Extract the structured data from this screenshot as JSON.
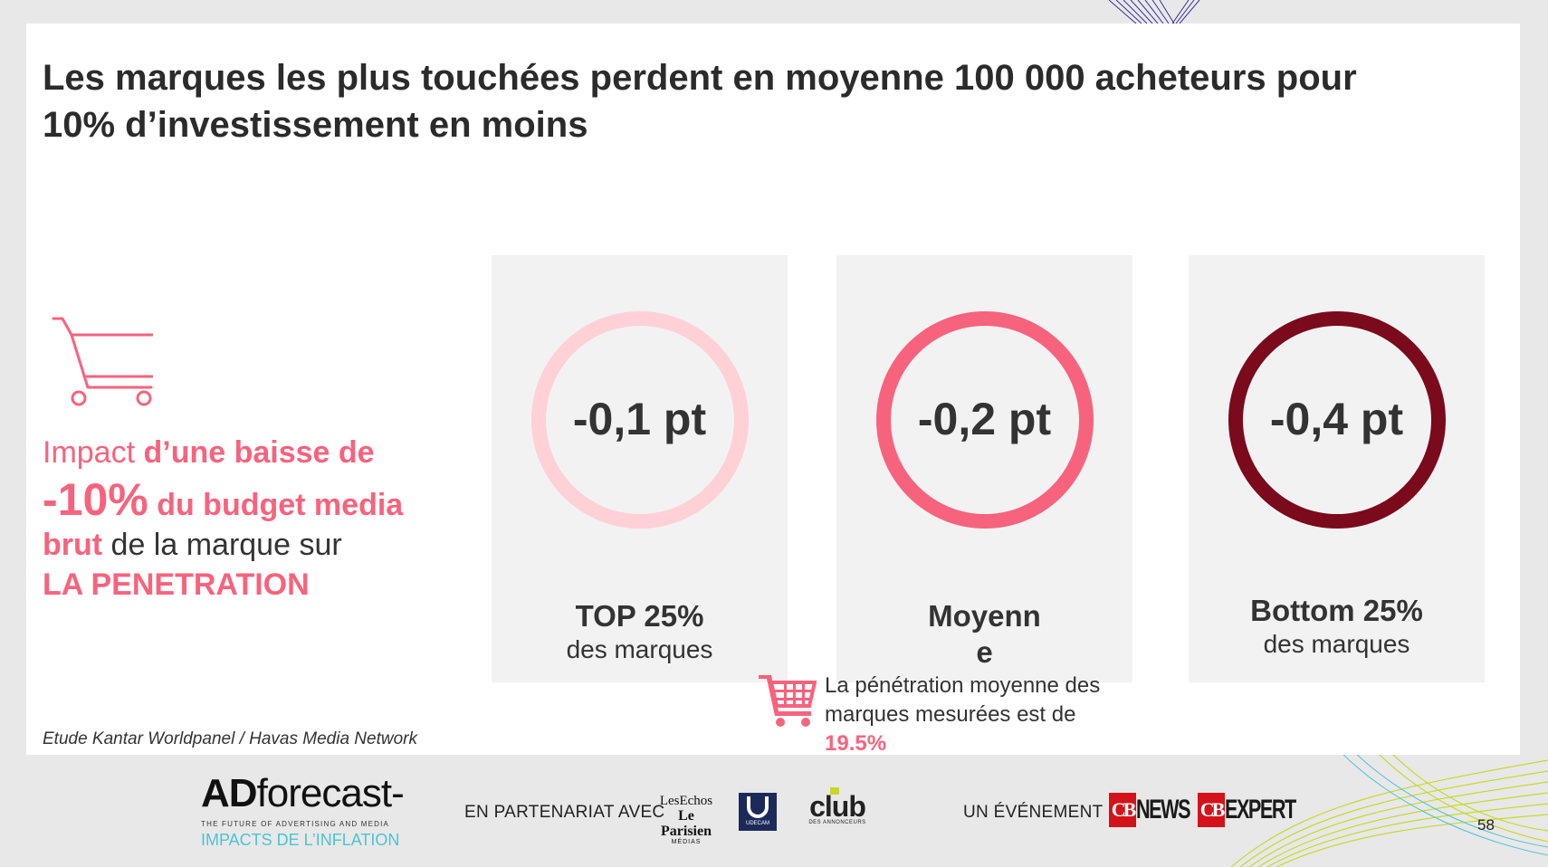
{
  "title": {
    "line1": "Les marques les plus touchées perdent en moyenne 100 000 acheteurs pour",
    "line2": "10% d’investissement en moins"
  },
  "impact": {
    "w1": "Impact",
    "w2": "d’une baisse de",
    "w3": "-10%",
    "w4": "du budget media",
    "w5": "brut",
    "w6": "de la marque sur",
    "w7": "LA PENETRATION"
  },
  "source": "Etude Kantar Worldpanel / Havas Media Network",
  "cards": [
    {
      "value": "-0,1 pt",
      "label_bold": "TOP 25%",
      "label": "des marques",
      "ring_color": "#ffd0d6"
    },
    {
      "value": "-0,2 pt",
      "label_bold_1": "Moyenn",
      "label_bold_2": "e",
      "ring_color": "#f7637d"
    },
    {
      "value": "-0,4 pt",
      "label_bold": "Bottom  25%",
      "label": "des marques",
      "ring_color": "#7a0a1c"
    }
  ],
  "note": {
    "line1": "La pénétration moyenne des",
    "line2": "marques mesurées est de",
    "value": "19.5%"
  },
  "footer": {
    "ad_forecast": {
      "a": "AD",
      "b": "forecast-",
      "tagline": "THE FUTURE OF ADVERTISING AND MEDIA",
      "sub": "IMPACTS DE L’INFLATION"
    },
    "partner_text": "EN PARTENARIAT AVEC",
    "lesechos": {
      "a": "LesEchos",
      "b": "Le Parisien",
      "c": "MÉDIAS"
    },
    "udecam": "UDECAM",
    "club": {
      "a": "club",
      "b": "DES ANNONCEURS"
    },
    "event_text": "UN ÉVÉNEMENT",
    "cbnews": {
      "mark": "CB",
      "word": "NEWS"
    },
    "cbexpert": {
      "mark": "CB",
      "word": "EXPERT"
    },
    "page_number": "58"
  },
  "colors": {
    "accent": "#f7637d",
    "light_pink": "#ffd0d6",
    "dark_red": "#7a0a1c",
    "card_bg": "#f2f2f2"
  }
}
